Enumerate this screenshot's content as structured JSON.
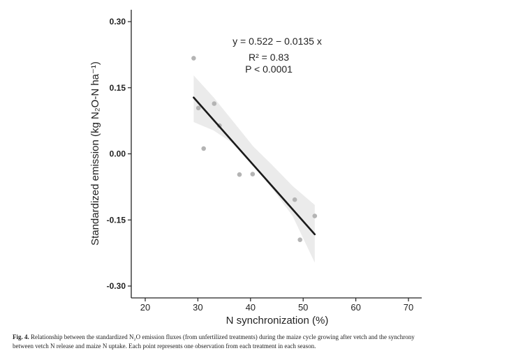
{
  "chart_data": {
    "type": "scatter",
    "xlabel": "N synchronization (%)",
    "ylabel": "Standardized  emission (kg N₂O-N ha⁻¹)",
    "xlim": [
      17,
      72
    ],
    "ylim": [
      -0.32,
      0.32
    ],
    "x_ticks": [
      20,
      30,
      40,
      50,
      60,
      70
    ],
    "x_tick_labels": [
      "20",
      "30",
      "40",
      "50",
      "60",
      "70"
    ],
    "y_ticks": [
      0.3,
      0.15,
      0.0,
      -0.15,
      -0.3
    ],
    "y_tick_labels": [
      "0.30",
      "0.15",
      "0.00",
      "-0.15",
      "-0.30"
    ],
    "points": [
      {
        "x": 29.2,
        "y": 0.217
      },
      {
        "x": 30.1,
        "y": 0.104
      },
      {
        "x": 31.1,
        "y": 0.012
      },
      {
        "x": 33.1,
        "y": 0.114
      },
      {
        "x": 34.1,
        "y": 0.064
      },
      {
        "x": 37.9,
        "y": -0.047
      },
      {
        "x": 40.4,
        "y": -0.046
      },
      {
        "x": 48.4,
        "y": -0.104
      },
      {
        "x": 49.4,
        "y": -0.195
      },
      {
        "x": 52.2,
        "y": -0.141
      }
    ],
    "fit": {
      "intercept": 0.522,
      "slope": -0.0135,
      "x_range": [
        29.2,
        52.2
      ]
    },
    "ci_band": [
      {
        "x": 29.2,
        "lower": 0.072,
        "upper": 0.178
      },
      {
        "x": 33.0,
        "lower": 0.053,
        "upper": 0.128
      },
      {
        "x": 37.0,
        "lower": 0.021,
        "upper": 0.069
      },
      {
        "x": 40.5,
        "lower": -0.024,
        "upper": 0.017
      },
      {
        "x": 44.0,
        "lower": -0.077,
        "upper": -0.024
      },
      {
        "x": 48.0,
        "lower": -0.141,
        "upper": -0.073
      },
      {
        "x": 52.2,
        "lower": -0.247,
        "upper": -0.116
      }
    ],
    "annotation": {
      "equation": "y = 0.522 − 0.0135 x",
      "r2": "R² = 0.83",
      "p": "P < 0.0001"
    },
    "grid": false,
    "legend": "none",
    "colors": {
      "points": "#b4b4b4",
      "line": "#1a1a1a",
      "band": "#ebebeb"
    }
  },
  "caption": {
    "label": "Fig. 4.",
    "line1": "Relationship between the standardized N₂O emission fluxes (from unfertilized treatments) during the maize cycle growing after vetch and the synchrony",
    "line2": "between vetch N release and maize N uptake. Each point represents one observation from each treatment in each season."
  }
}
